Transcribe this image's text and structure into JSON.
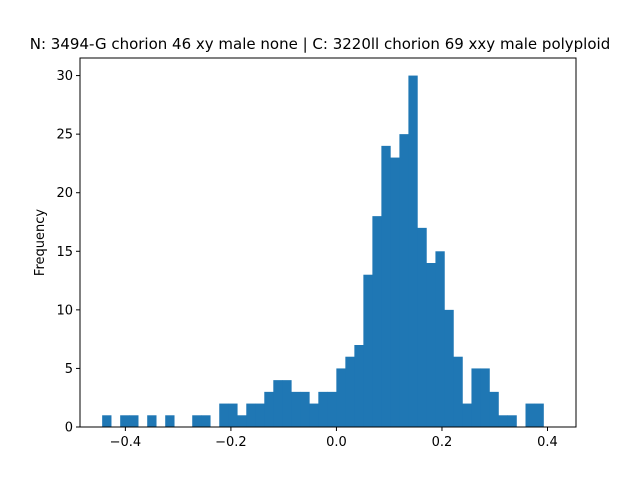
{
  "chart_data": {
    "type": "bar",
    "title": "N: 3494-G chorion 46 xy male none | C: 3220ll chorion 69 xxy male polyploid",
    "xlabel": "",
    "ylabel": "Frequency",
    "xlim": [
      -0.486,
      0.454
    ],
    "ylim": [
      0,
      31.5
    ],
    "xticks": [
      -0.4,
      -0.2,
      0.0,
      0.2,
      0.4
    ],
    "xtick_labels": [
      "−0.4",
      "−0.2",
      "0.0",
      "0.2",
      "0.4"
    ],
    "yticks": [
      0,
      5,
      10,
      15,
      20,
      25,
      30
    ],
    "ytick_labels": [
      "0",
      "5",
      "10",
      "15",
      "20",
      "25",
      "30"
    ],
    "bin_start": -0.444,
    "bin_width": 0.01707,
    "counts": [
      1,
      0,
      1,
      1,
      0,
      1,
      0,
      1,
      0,
      0,
      1,
      1,
      0,
      2,
      2,
      1,
      2,
      2,
      3,
      4,
      4,
      3,
      3,
      2,
      3,
      3,
      5,
      6,
      7,
      13,
      18,
      24,
      23,
      25,
      30,
      17,
      14,
      15,
      10,
      6,
      2,
      5,
      5,
      3,
      1,
      1,
      0,
      2,
      2
    ],
    "color": "#1f77b4",
    "grid": false,
    "legend": "none"
  }
}
